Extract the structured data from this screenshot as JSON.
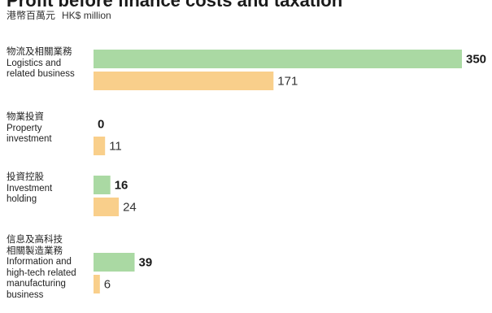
{
  "header": {
    "title": "Profit before finance costs and taxation",
    "unit_zh": "港幣百萬元",
    "unit_en": "HK$ million"
  },
  "colors": {
    "series_a": "#aad9a3",
    "series_b": "#f9cf8b"
  },
  "chart_data": {
    "type": "bar",
    "orientation": "horizontal",
    "title": "Profit before finance costs and taxation",
    "xlabel": "",
    "ylabel": "",
    "xlim": [
      0,
      350
    ],
    "grid": false,
    "legend": "none",
    "categories": [
      {
        "label_zh": [
          "物流及相關業務"
        ],
        "label_en": [
          "Logistics and",
          "related business"
        ]
      },
      {
        "label_zh": [
          "物業投資"
        ],
        "label_en": [
          "Property",
          "investment"
        ]
      },
      {
        "label_zh": [
          "投資控股"
        ],
        "label_en": [
          "Investment",
          "holding"
        ]
      },
      {
        "label_zh": [
          "信息及高科技",
          "相關製造業務"
        ],
        "label_en": [
          "Information and",
          "high-tech related",
          "manufacturing",
          "business"
        ]
      }
    ],
    "series": [
      {
        "values": [
          350,
          0,
          16,
          39
        ]
      },
      {
        "values": [
          171,
          11,
          24,
          6
        ]
      }
    ]
  }
}
